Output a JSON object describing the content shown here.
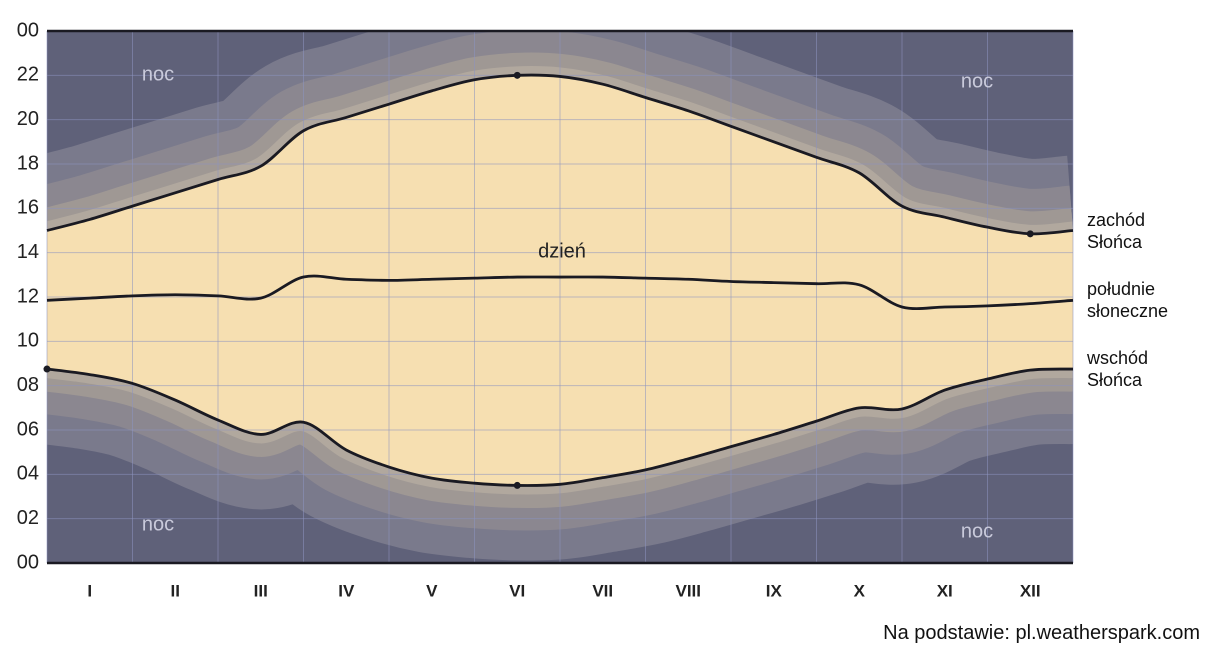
{
  "chart_data": {
    "type": "line",
    "categories": [
      null,
      "I",
      null,
      "II",
      null,
      "III",
      null,
      "IV",
      null,
      "V",
      null,
      "VI",
      null,
      "VII",
      null,
      "VIII",
      null,
      "IX",
      null,
      "X",
      null,
      "XI",
      null,
      "XII",
      null
    ],
    "series": [
      {
        "name": "zachód Słońca",
        "color": "#1a1a22",
        "values": [
          15.0,
          15.5,
          16.1,
          16.7,
          17.3,
          17.9,
          19.5,
          20.1,
          20.7,
          21.3,
          21.8,
          22.0,
          21.95,
          21.6,
          21.0,
          20.4,
          19.7,
          19.0,
          18.3,
          17.6,
          16.1,
          15.6,
          15.15,
          14.85,
          15.0
        ]
      },
      {
        "name": "południe słoneczne",
        "color": "#1a1a22",
        "values": [
          11.85,
          11.95,
          12.05,
          12.1,
          12.05,
          11.95,
          12.9,
          12.8,
          12.75,
          12.8,
          12.85,
          12.9,
          12.9,
          12.9,
          12.85,
          12.8,
          12.7,
          12.65,
          12.6,
          12.55,
          11.55,
          11.55,
          11.6,
          11.7,
          11.85
        ]
      },
      {
        "name": "wschód Słońca",
        "color": "#1a1a22",
        "values": [
          8.75,
          8.5,
          8.1,
          7.35,
          6.45,
          5.8,
          6.35,
          5.1,
          4.33,
          3.83,
          3.6,
          3.5,
          3.55,
          3.85,
          4.2,
          4.7,
          5.25,
          5.8,
          6.4,
          7.0,
          6.95,
          7.8,
          8.3,
          8.7,
          8.75
        ]
      }
    ],
    "ylim": [
      0,
      24
    ],
    "yticks": [
      {
        "value": 0,
        "label": "00"
      },
      {
        "value": 2,
        "label": "02"
      },
      {
        "value": 4,
        "label": "04"
      },
      {
        "value": 6,
        "label": "06"
      },
      {
        "value": 8,
        "label": "08"
      },
      10,
      12,
      14,
      16,
      18,
      20,
      22,
      {
        "value": 24,
        "label": "00"
      }
    ],
    "grid": true,
    "annotations": [
      "noc",
      "noc",
      "noc",
      "noc",
      "dzień"
    ],
    "source": "Na podstawie: pl.weatherspark.com"
  }
}
